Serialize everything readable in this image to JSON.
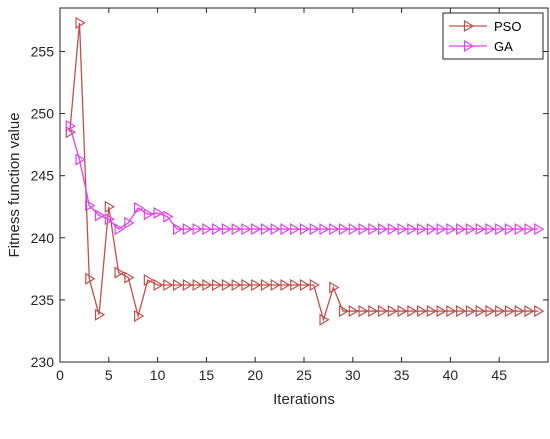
{
  "chart_data": {
    "type": "line",
    "title": "",
    "xlabel": "Iterations",
    "ylabel": "Fitness function value",
    "xlim": [
      0,
      50
    ],
    "ylim": [
      230,
      258.5
    ],
    "xticks": [
      0,
      5,
      10,
      15,
      20,
      25,
      30,
      35,
      40,
      45
    ],
    "yticks": [
      230,
      235,
      240,
      245,
      250,
      255
    ],
    "grid": false,
    "legend_position": "top-right",
    "series": [
      {
        "name": "PSO",
        "color": "#c0504d",
        "marker": "right-triangle",
        "x": [
          1,
          2,
          3,
          4,
          5,
          6,
          7,
          8,
          9,
          10,
          11,
          12,
          13,
          14,
          15,
          16,
          17,
          18,
          19,
          20,
          21,
          22,
          23,
          24,
          25,
          26,
          27,
          28,
          29,
          30,
          31,
          32,
          33,
          34,
          35,
          36,
          37,
          38,
          39,
          40,
          41,
          42,
          43,
          44,
          45,
          46,
          47,
          48,
          49
        ],
        "values": [
          248.5,
          257.3,
          236.7,
          233.8,
          242.5,
          237.2,
          236.8,
          233.7,
          236.6,
          236.2,
          236.2,
          236.2,
          236.2,
          236.2,
          236.2,
          236.2,
          236.2,
          236.2,
          236.2,
          236.2,
          236.2,
          236.2,
          236.2,
          236.2,
          236.2,
          236.2,
          233.4,
          236.0,
          234.1,
          234.1,
          234.1,
          234.1,
          234.1,
          234.1,
          234.1,
          234.1,
          234.1,
          234.1,
          234.1,
          234.1,
          234.1,
          234.1,
          234.1,
          234.1,
          234.1,
          234.1,
          234.1,
          234.1,
          234.1
        ]
      },
      {
        "name": "GA",
        "color": "#e040e8",
        "marker": "right-triangle",
        "x": [
          1,
          2,
          3,
          4,
          5,
          6,
          7,
          8,
          9,
          10,
          11,
          12,
          13,
          14,
          15,
          16,
          17,
          18,
          19,
          20,
          21,
          22,
          23,
          24,
          25,
          26,
          27,
          28,
          29,
          30,
          31,
          32,
          33,
          34,
          35,
          36,
          37,
          38,
          39,
          40,
          41,
          42,
          43,
          44,
          45,
          46,
          47,
          48,
          49
        ],
        "values": [
          249.0,
          246.3,
          242.6,
          241.8,
          241.5,
          240.7,
          241.2,
          242.4,
          241.9,
          242.0,
          241.7,
          240.7,
          240.7,
          240.7,
          240.7,
          240.7,
          240.7,
          240.7,
          240.7,
          240.7,
          240.7,
          240.7,
          240.7,
          240.7,
          240.7,
          240.7,
          240.7,
          240.7,
          240.7,
          240.7,
          240.7,
          240.7,
          240.7,
          240.7,
          240.7,
          240.7,
          240.7,
          240.7,
          240.7,
          240.7,
          240.7,
          240.7,
          240.7,
          240.7,
          240.7,
          240.7,
          240.7,
          240.7,
          240.7
        ]
      }
    ]
  }
}
